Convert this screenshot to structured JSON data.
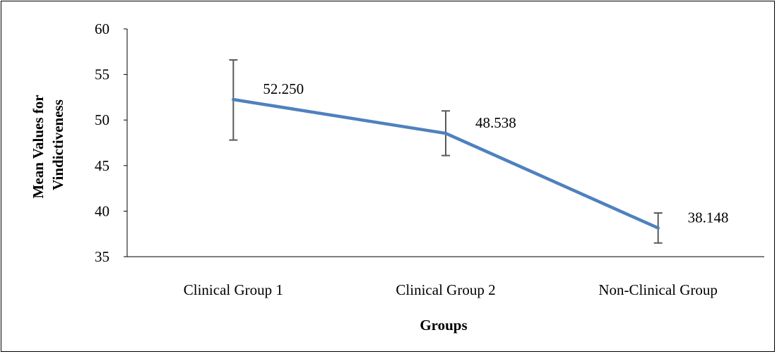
{
  "chart_data": {
    "type": "line",
    "categories": [
      "Clinical Group 1",
      "Clinical Group 2",
      "Non-Clinical Group"
    ],
    "series": [
      {
        "values": [
          52.25,
          48.538,
          38.148
        ],
        "data_labels": [
          "52.250",
          "48.538",
          "38.148"
        ],
        "error_low": [
          47.8,
          46.1,
          36.5
        ],
        "error_high": [
          56.6,
          51.0,
          39.8
        ],
        "color": "#4F81BD"
      }
    ],
    "error_bar_color": "#595959",
    "xlabel": "Groups",
    "ylabel_lines": [
      "Mean Values for",
      "Vindictiveness"
    ],
    "ylim": [
      35,
      60
    ],
    "yticks": [
      "35",
      "40",
      "45",
      "50",
      "55",
      "60"
    ],
    "grid": false,
    "legend": "none"
  }
}
